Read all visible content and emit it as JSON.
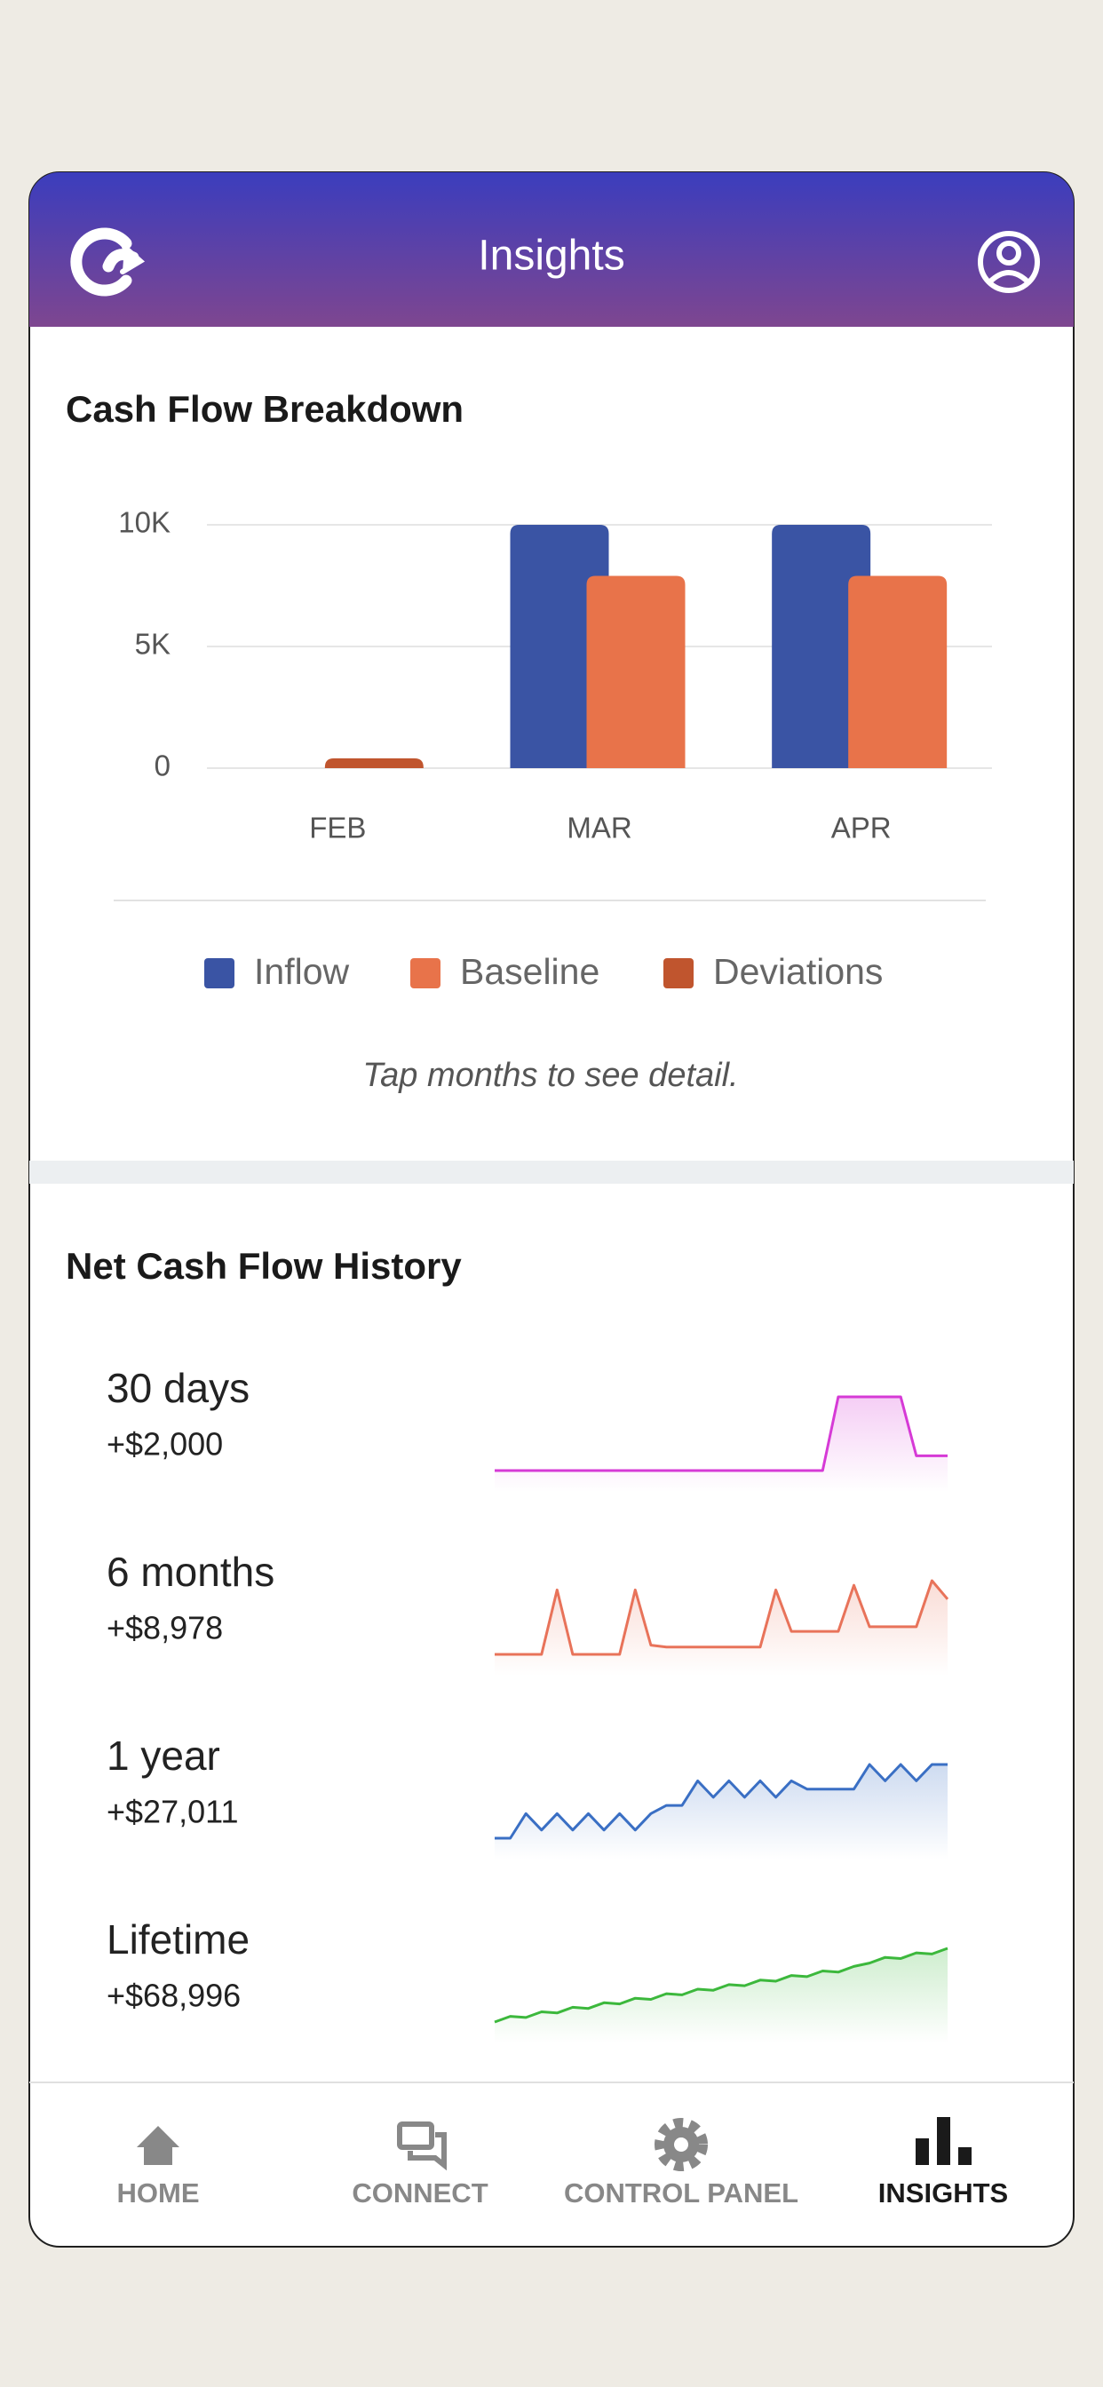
{
  "header": {
    "title": "Insights"
  },
  "chart_data": {
    "type": "bar",
    "title": "Cash Flow Breakdown",
    "categories": [
      "FEB",
      "MAR",
      "APR"
    ],
    "series": [
      {
        "name": "Inflow",
        "color": "#3a54a4",
        "values": [
          0,
          10000,
          10000
        ]
      },
      {
        "name": "Baseline",
        "color": "#e8734a",
        "values": [
          0,
          7900,
          7900
        ]
      },
      {
        "name": "Deviations",
        "color": "#c0552e",
        "values": [
          400,
          0,
          0
        ]
      }
    ],
    "ylim": [
      0,
      10000
    ],
    "yticks": [
      0,
      {
        "value": 5000,
        "label": "5K"
      },
      {
        "value": 10000,
        "label": "10K"
      }
    ],
    "grid": true,
    "legend": "bottom",
    "note": "Tap months to see detail."
  },
  "net_cash_flow": {
    "title": "Net Cash Flow History",
    "rows": [
      {
        "label": "30 days",
        "amount": "+$2,000",
        "color": "#d63ad6",
        "values": [
          0,
          0,
          0,
          0,
          0,
          0,
          0,
          0,
          0,
          0,
          0,
          0,
          0,
          0,
          0,
          0,
          0,
          0,
          0,
          0,
          0,
          0,
          100,
          100,
          100,
          100,
          100,
          20,
          20,
          20
        ]
      },
      {
        "label": "6 months",
        "amount": "+$8,978",
        "color": "#e8735a",
        "values": [
          0,
          0,
          0,
          0,
          70,
          0,
          0,
          0,
          0,
          70,
          10,
          8,
          8,
          8,
          8,
          8,
          8,
          8,
          70,
          25,
          25,
          25,
          25,
          75,
          30,
          30,
          30,
          30,
          80,
          60
        ]
      },
      {
        "label": "1 year",
        "amount": "+$27,011",
        "color": "#3a6fc4",
        "values": [
          0,
          0,
          15,
          5,
          15,
          5,
          15,
          5,
          15,
          5,
          15,
          20,
          20,
          35,
          25,
          35,
          25,
          35,
          25,
          35,
          30,
          30,
          30,
          30,
          45,
          35,
          45,
          35,
          45,
          45
        ]
      },
      {
        "label": "Lifetime",
        "amount": "+$68,996",
        "color": "#3cb83c",
        "values": [
          0,
          5,
          4,
          9,
          8,
          13,
          12,
          17,
          16,
          21,
          20,
          25,
          24,
          29,
          28,
          33,
          32,
          37,
          36,
          41,
          40,
          45,
          44,
          49,
          52,
          57,
          56,
          61,
          60,
          65
        ]
      }
    ]
  },
  "nav": {
    "items": [
      "HOME",
      "CONNECT",
      "CONTROL PANEL",
      "INSIGHTS"
    ],
    "active": 3
  }
}
